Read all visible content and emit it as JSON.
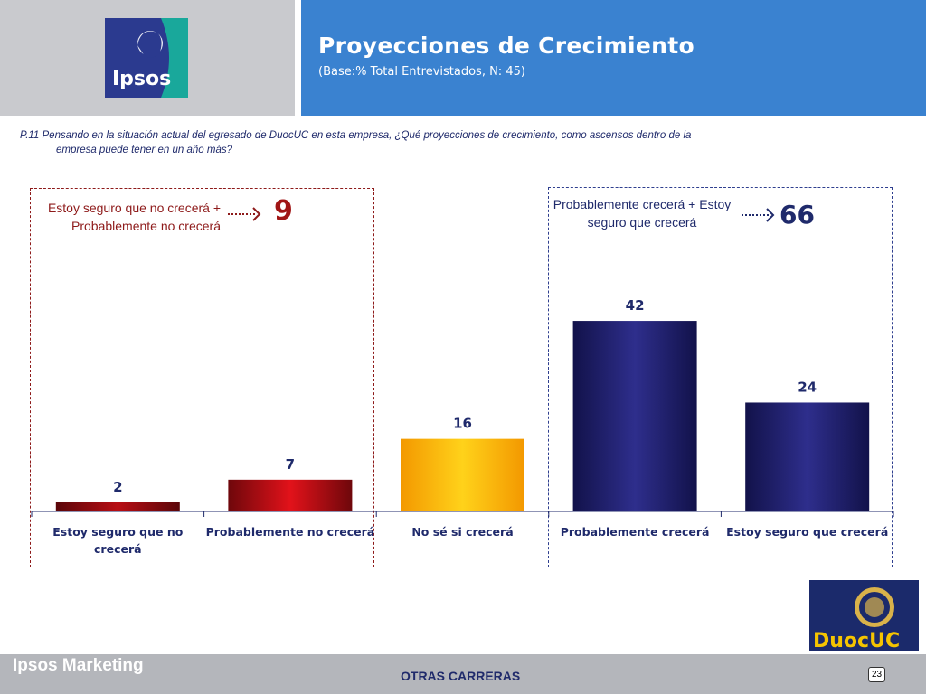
{
  "header": {
    "title": "Proyecciones de Crecimiento",
    "subtitle": "(Base:% Total Entrevistados, N: 45)",
    "logo_text": "Ipsos"
  },
  "question": {
    "line1": "P.11 Pensando en la situación actual del egresado de DuocUC en  esta empresa, ¿Qué  proyecciones de crecimiento, como ascensos dentro de la",
    "line2": "empresa  puede tener en un año más?"
  },
  "summary_negative": {
    "label": "Estoy seguro que no crecerá + Probablemente no crecerá",
    "value": "9"
  },
  "summary_positive": {
    "label": "Probablemente crecerá + Estoy seguro que crecerá",
    "value": "66"
  },
  "chart_data": {
    "type": "bar",
    "categories": [
      "Estoy seguro que no crecerá",
      "Probablemente no crecerá",
      "No sé si crecerá",
      "Probablemente crecerá",
      "Estoy seguro que crecerá"
    ],
    "values": [
      2,
      7,
      16,
      42,
      24
    ],
    "ylim": [
      0,
      45
    ],
    "colors": [
      "#8a0c10",
      "#c80d14",
      "#f7a600",
      "#21206e",
      "#21206e"
    ],
    "grid": false,
    "title": "",
    "xlabel": "",
    "ylabel": ""
  },
  "sidebar_logo": {
    "text": "DuocUC"
  },
  "footer": {
    "brand": "Ipsos Marketing",
    "center": "OTRAS CARRERAS",
    "page": "23"
  },
  "colors": {
    "header_blue": "#3a82d0",
    "header_gray": "#c9cace",
    "navy": "#1f2a6b",
    "dark_red": "#8e1a1a",
    "footer_gray": "#b4b6bb"
  }
}
